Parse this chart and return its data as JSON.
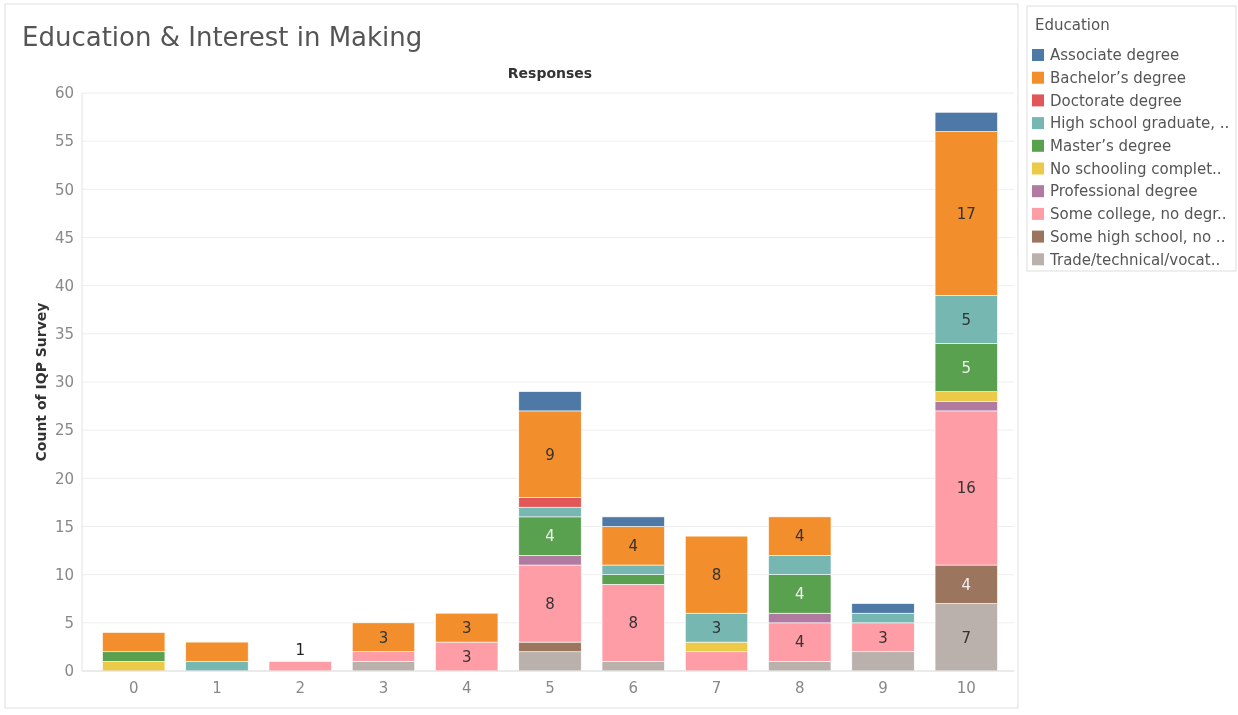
{
  "chart_data": {
    "type": "bar",
    "stacked": true,
    "title": "Education & Interest in Making",
    "xlabel": "Responses",
    "ylabel": "Count of IQP Survey",
    "legend_title": "Education",
    "legend": "right",
    "grid": "y",
    "categories": [
      "0",
      "1",
      "2",
      "3",
      "4",
      "5",
      "6",
      "7",
      "8",
      "9",
      "10"
    ],
    "ylim": [
      0,
      60
    ],
    "yticks": [
      0,
      5,
      10,
      15,
      20,
      25,
      30,
      35,
      40,
      45,
      50,
      55,
      60
    ],
    "series": [
      {
        "name": "Trade/technical/vocat..",
        "color": "#bab0ac",
        "values": [
          0,
          0,
          0,
          1,
          0,
          2,
          1,
          0,
          1,
          2,
          7
        ],
        "value_labels": [
          null,
          null,
          null,
          null,
          null,
          null,
          null,
          null,
          null,
          null,
          "7"
        ]
      },
      {
        "name": "Some high school, no ..",
        "color": "#9c755f",
        "values": [
          0,
          0,
          0,
          0,
          0,
          1,
          0,
          0,
          0,
          0,
          4
        ],
        "value_labels": [
          null,
          null,
          null,
          null,
          null,
          null,
          null,
          null,
          null,
          null,
          "4"
        ]
      },
      {
        "name": "Some college, no degr..",
        "color": "#ff9da7",
        "values": [
          0,
          0,
          1,
          1,
          3,
          8,
          8,
          2,
          4,
          3,
          16
        ],
        "value_labels": [
          null,
          null,
          "1",
          null,
          "3",
          "8",
          "8",
          null,
          "4",
          "3",
          "16"
        ]
      },
      {
        "name": "Professional degree",
        "color": "#b07aa1",
        "values": [
          0,
          0,
          0,
          0,
          0,
          1,
          0,
          0,
          1,
          0,
          1
        ],
        "value_labels": [
          null,
          null,
          null,
          null,
          null,
          null,
          null,
          null,
          null,
          null,
          null
        ]
      },
      {
        "name": "No schooling complet..",
        "color": "#edc948",
        "values": [
          1,
          0,
          0,
          0,
          0,
          0,
          0,
          1,
          0,
          0,
          1
        ],
        "value_labels": [
          null,
          null,
          null,
          null,
          null,
          null,
          null,
          null,
          null,
          null,
          null
        ]
      },
      {
        "name": "Master’s degree",
        "color": "#59a14f",
        "values": [
          1,
          0,
          0,
          0,
          0,
          4,
          1,
          0,
          4,
          0,
          5
        ],
        "value_labels": [
          null,
          null,
          null,
          null,
          null,
          "4",
          null,
          null,
          "4",
          null,
          "5"
        ]
      },
      {
        "name": "High school graduate, ..",
        "color": "#76b7b2",
        "values": [
          0,
          1,
          0,
          0,
          0,
          1,
          1,
          3,
          2,
          1,
          5
        ],
        "value_labels": [
          null,
          null,
          null,
          null,
          null,
          null,
          null,
          "3",
          null,
          null,
          "5"
        ]
      },
      {
        "name": "Doctorate degree",
        "color": "#e15759",
        "values": [
          0,
          0,
          0,
          0,
          0,
          1,
          0,
          0,
          0,
          0,
          0
        ],
        "value_labels": [
          null,
          null,
          null,
          null,
          null,
          null,
          null,
          null,
          null,
          null,
          null
        ]
      },
      {
        "name": "Bachelor’s degree",
        "color": "#f28e2b",
        "values": [
          2,
          2,
          0,
          3,
          3,
          9,
          4,
          8,
          4,
          0,
          17
        ],
        "value_labels": [
          null,
          null,
          null,
          "3",
          "3",
          "9",
          "4",
          "8",
          "4",
          null,
          "17"
        ]
      },
      {
        "name": "Associate degree",
        "color": "#4e79a7",
        "values": [
          0,
          0,
          0,
          0,
          0,
          2,
          1,
          0,
          0,
          1,
          2
        ],
        "value_labels": [
          null,
          null,
          null,
          null,
          null,
          null,
          null,
          null,
          null,
          null,
          null
        ]
      }
    ]
  }
}
